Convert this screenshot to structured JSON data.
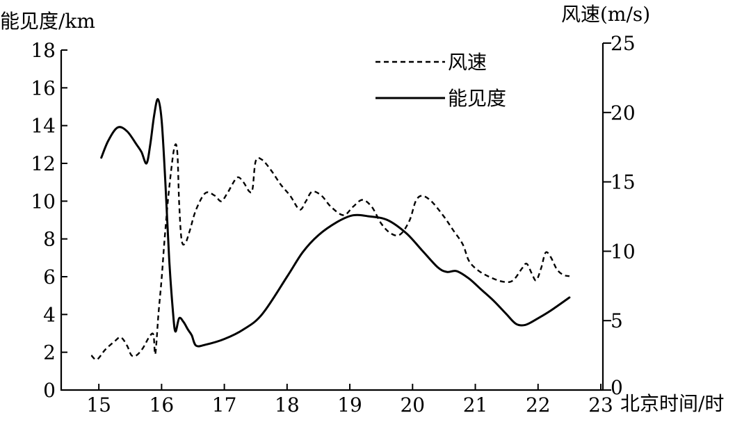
{
  "chart_data": {
    "type": "line",
    "y_left_label": "能见度/km",
    "y_right_label": "风速(m/s)",
    "x_label": "北京时间/时",
    "x_range": [
      14.4,
      23
    ],
    "y_left_range": [
      0,
      18
    ],
    "y_right_range": [
      0,
      25
    ],
    "x_ticks": [
      "15",
      "16",
      "17",
      "18",
      "19",
      "20",
      "21",
      "22",
      "23"
    ],
    "y_left_ticks": [
      "0",
      "2",
      "4",
      "6",
      "8",
      "10",
      "12",
      "14",
      "16",
      "18"
    ],
    "y_right_ticks": [
      "0",
      "5",
      "10",
      "15",
      "20",
      "25"
    ],
    "legend": [
      {
        "name": "风速",
        "style": "dashed"
      },
      {
        "name": "能见度",
        "style": "solid"
      }
    ],
    "series": [
      {
        "name": "能见度",
        "axis": "left",
        "style": "solid",
        "color": "#000000",
        "points": [
          [
            15.04,
            12.3
          ],
          [
            15.15,
            13.2
          ],
          [
            15.3,
            13.9
          ],
          [
            15.45,
            13.7
          ],
          [
            15.6,
            13.0
          ],
          [
            15.68,
            12.6
          ],
          [
            15.76,
            12.0
          ],
          [
            15.82,
            13.0
          ],
          [
            15.88,
            14.5
          ],
          [
            15.94,
            15.4
          ],
          [
            16.0,
            14.3
          ],
          [
            16.06,
            11.0
          ],
          [
            16.12,
            7.0
          ],
          [
            16.18,
            4.2
          ],
          [
            16.22,
            3.1
          ],
          [
            16.28,
            3.8
          ],
          [
            16.35,
            3.6
          ],
          [
            16.42,
            3.2
          ],
          [
            16.48,
            2.9
          ],
          [
            16.55,
            2.35
          ],
          [
            16.7,
            2.4
          ],
          [
            17.0,
            2.7
          ],
          [
            17.3,
            3.2
          ],
          [
            17.6,
            4.0
          ],
          [
            18.0,
            6.0
          ],
          [
            18.25,
            7.3
          ],
          [
            18.5,
            8.2
          ],
          [
            18.8,
            8.9
          ],
          [
            19.05,
            9.25
          ],
          [
            19.3,
            9.2
          ],
          [
            19.6,
            9.0
          ],
          [
            19.9,
            8.3
          ],
          [
            20.15,
            7.4
          ],
          [
            20.4,
            6.5
          ],
          [
            20.55,
            6.25
          ],
          [
            20.7,
            6.3
          ],
          [
            20.9,
            5.9
          ],
          [
            21.1,
            5.3
          ],
          [
            21.3,
            4.7
          ],
          [
            21.5,
            4.0
          ],
          [
            21.65,
            3.5
          ],
          [
            21.8,
            3.45
          ],
          [
            22.0,
            3.8
          ],
          [
            22.2,
            4.2
          ],
          [
            22.5,
            4.9
          ]
        ]
      },
      {
        "name": "风速",
        "axis": "right",
        "style": "dashed",
        "color": "#000000",
        "points": [
          [
            14.88,
            2.5
          ],
          [
            14.97,
            2.2
          ],
          [
            15.1,
            2.9
          ],
          [
            15.25,
            3.5
          ],
          [
            15.35,
            3.8
          ],
          [
            15.45,
            3.2
          ],
          [
            15.52,
            2.5
          ],
          [
            15.6,
            2.5
          ],
          [
            15.7,
            3.0
          ],
          [
            15.8,
            3.8
          ],
          [
            15.87,
            4.0
          ],
          [
            15.9,
            2.6
          ],
          [
            15.95,
            5.5
          ],
          [
            16.0,
            8.0
          ],
          [
            16.05,
            11.0
          ],
          [
            16.12,
            14.5
          ],
          [
            16.2,
            17.4
          ],
          [
            16.25,
            17.2
          ],
          [
            16.28,
            13.5
          ],
          [
            16.32,
            10.8
          ],
          [
            16.38,
            10.6
          ],
          [
            16.45,
            11.5
          ],
          [
            16.55,
            13.0
          ],
          [
            16.7,
            14.2
          ],
          [
            16.85,
            14.0
          ],
          [
            16.95,
            13.6
          ],
          [
            17.05,
            14.2
          ],
          [
            17.2,
            15.3
          ],
          [
            17.3,
            15.0
          ],
          [
            17.4,
            14.3
          ],
          [
            17.45,
            14.5
          ],
          [
            17.5,
            16.5
          ],
          [
            17.6,
            16.6
          ],
          [
            17.75,
            15.8
          ],
          [
            17.9,
            14.8
          ],
          [
            18.05,
            14.0
          ],
          [
            18.2,
            13.0
          ],
          [
            18.3,
            13.6
          ],
          [
            18.4,
            14.3
          ],
          [
            18.55,
            14.0
          ],
          [
            18.7,
            13.2
          ],
          [
            18.9,
            12.6
          ],
          [
            19.05,
            13.2
          ],
          [
            19.2,
            13.7
          ],
          [
            19.35,
            13.2
          ],
          [
            19.5,
            12.0
          ],
          [
            19.65,
            11.3
          ],
          [
            19.8,
            11.2
          ],
          [
            19.95,
            12.2
          ],
          [
            20.05,
            13.6
          ],
          [
            20.15,
            14.0
          ],
          [
            20.3,
            13.6
          ],
          [
            20.5,
            12.5
          ],
          [
            20.65,
            11.5
          ],
          [
            20.8,
            10.5
          ],
          [
            20.9,
            9.3
          ],
          [
            21.05,
            8.6
          ],
          [
            21.25,
            8.1
          ],
          [
            21.45,
            7.8
          ],
          [
            21.6,
            7.9
          ],
          [
            21.75,
            8.8
          ],
          [
            21.82,
            9.1
          ],
          [
            21.9,
            8.4
          ],
          [
            21.97,
            7.9
          ],
          [
            22.05,
            8.8
          ],
          [
            22.12,
            9.9
          ],
          [
            22.2,
            9.6
          ],
          [
            22.3,
            8.7
          ],
          [
            22.4,
            8.3
          ],
          [
            22.5,
            8.2
          ]
        ]
      }
    ]
  }
}
